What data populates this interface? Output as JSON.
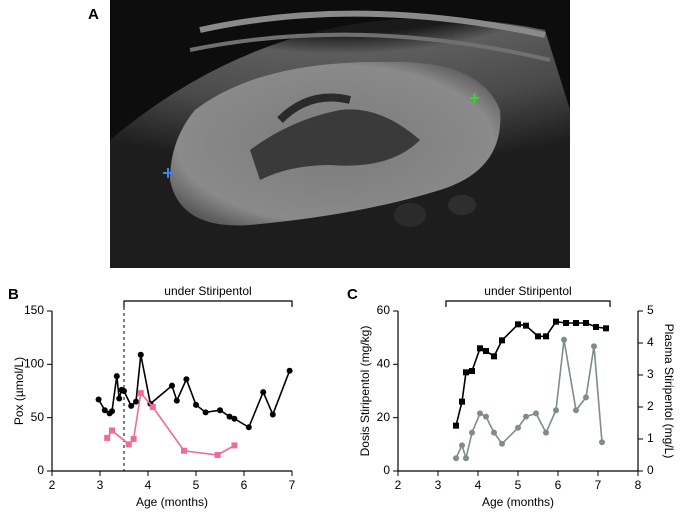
{
  "panel_labels": [
    "A",
    "B",
    "C"
  ],
  "chart_data": [
    {
      "type": "line",
      "xlabel": "Age (months)",
      "ylabel": "Pox (µmol/L)",
      "xlim": [
        2,
        7
      ],
      "xticks": [
        2,
        3,
        4,
        5,
        6,
        7
      ],
      "ylim": [
        0,
        150
      ],
      "yticks": [
        0,
        50,
        100,
        150
      ],
      "annotation": "under Stiripentol",
      "bracket": [
        3.5,
        7
      ],
      "dashed_line": 3.5,
      "series": [
        {
          "color": "#000000",
          "marker": "circle",
          "x": [
            2.97,
            3.1,
            3.2,
            3.25,
            3.35,
            3.4,
            3.45,
            3.5,
            3.65,
            3.75,
            3.85,
            4.05,
            4.5,
            4.6,
            4.8,
            5.0,
            5.2,
            5.5,
            5.7,
            5.8,
            6.1,
            6.4,
            6.6,
            6.95
          ],
          "values": [
            67,
            57,
            54,
            56,
            89,
            68,
            76,
            75,
            61,
            65,
            109,
            63,
            80,
            66,
            86,
            62,
            55,
            57,
            51,
            49,
            41,
            74,
            53,
            94
          ]
        },
        {
          "color": "#f06a9a",
          "marker": "square",
          "x": [
            3.15,
            3.25,
            3.6,
            3.7,
            3.85,
            4.1,
            4.75,
            5.45,
            5.8
          ],
          "values": [
            31,
            38,
            25,
            30,
            73,
            60,
            19,
            15,
            24
          ]
        }
      ]
    },
    {
      "type": "line",
      "xlabel": "Age (months)",
      "ylabel": "Dosis Stiripentol (mg/kg)",
      "y2label": "Plasma Stiripentol (mg/L)",
      "xlim": [
        2,
        8
      ],
      "xticks": [
        2,
        3,
        4,
        5,
        6,
        7,
        8
      ],
      "ylim": [
        0,
        60
      ],
      "yticks": [
        0,
        20,
        40,
        60
      ],
      "y2lim": [
        0,
        5
      ],
      "y2ticks": [
        0,
        1,
        2,
        3,
        4,
        5
      ],
      "y2color": "#7f8c8d",
      "annotation": "under Stiripentol",
      "bracket": [
        3.2,
        7.3
      ],
      "series": [
        {
          "color": "#000000",
          "marker": "square",
          "x": [
            3.45,
            3.6,
            3.7,
            3.85,
            4.05,
            4.2,
            4.4,
            4.6,
            5.0,
            5.2,
            5.5,
            5.7,
            5.95,
            6.2,
            6.45,
            6.7,
            6.95,
            7.2
          ],
          "values": [
            17,
            26,
            37,
            37.5,
            46,
            45,
            43,
            49,
            55,
            54.5,
            50.5,
            50.5,
            56,
            55.5,
            55.5,
            55.5,
            54,
            53.5
          ]
        },
        {
          "color": "#7f8c8d",
          "marker": "circle",
          "axis": "y2",
          "x": [
            3.45,
            3.6,
            3.7,
            3.85,
            4.05,
            4.2,
            4.4,
            4.6,
            5.0,
            5.2,
            5.45,
            5.7,
            5.95,
            6.15,
            6.45,
            6.7,
            6.9,
            7.1
          ],
          "values": [
            0.4,
            0.8,
            0.4,
            1.2,
            1.8,
            1.7,
            1.2,
            0.85,
            1.35,
            1.7,
            1.8,
            1.2,
            1.9,
            4.1,
            1.9,
            2.3,
            3.9,
            0.9
          ]
        }
      ]
    }
  ]
}
